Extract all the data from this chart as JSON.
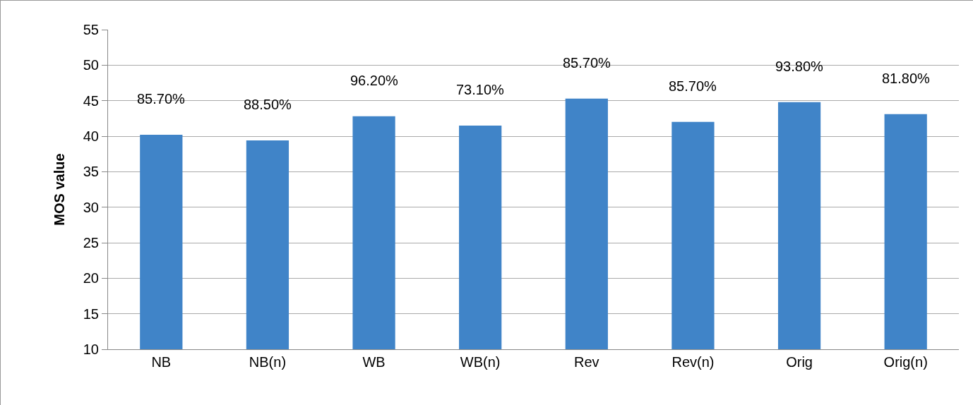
{
  "chart_data": {
    "type": "bar",
    "ylabel": "MOS value",
    "categories": [
      "NB",
      "NB(n)",
      "WB",
      "WB(n)",
      "Rev",
      "Rev(n)",
      "Orig",
      "Orig(n)"
    ],
    "values": [
      40.2,
      39.4,
      42.8,
      41.5,
      45.3,
      42.0,
      44.8,
      43.1
    ],
    "annotations": [
      {
        "text": "85.70%",
        "x": "NB",
        "y": 40.2
      },
      {
        "text": "88.50%",
        "x": "NB(n)",
        "y": 39.4
      },
      {
        "text": "96.20%",
        "x": "WB",
        "y": 42.8
      },
      {
        "text": "73.10%",
        "x": "WB(n)",
        "y": 41.5
      },
      {
        "text": "85.70%",
        "x": "Rev",
        "y": 45.3
      },
      {
        "text": "85.70%",
        "x": "Rev(n)",
        "y": 42.0
      },
      {
        "text": "93.80%",
        "x": "Orig",
        "y": 44.8
      },
      {
        "text": "81.80%",
        "x": "Orig(n)",
        "y": 43.1
      }
    ],
    "color": "#4084c8",
    "ylim": [
      10,
      55
    ],
    "yticks": [
      10,
      15,
      20,
      25,
      30,
      35,
      40,
      45,
      50,
      55
    ],
    "grid": "y",
    "legend": false
  }
}
